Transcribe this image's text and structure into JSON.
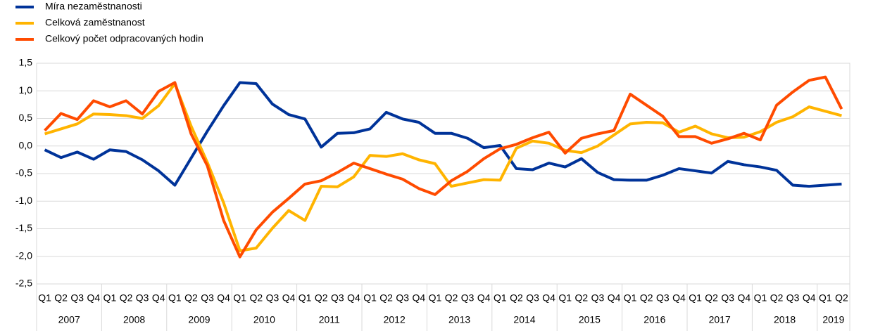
{
  "chart_data": {
    "type": "line",
    "categories": [
      "Q1",
      "Q2",
      "Q3",
      "Q4",
      "Q1",
      "Q2",
      "Q3",
      "Q4",
      "Q1",
      "Q2",
      "Q3",
      "Q4",
      "Q1",
      "Q2",
      "Q3",
      "Q4",
      "Q1",
      "Q2",
      "Q3",
      "Q4",
      "Q1",
      "Q2",
      "Q3",
      "Q4",
      "Q1",
      "Q2",
      "Q3",
      "Q4",
      "Q1",
      "Q2",
      "Q3",
      "Q4",
      "Q1",
      "Q2",
      "Q3",
      "Q4",
      "Q1",
      "Q2",
      "Q3",
      "Q4",
      "Q1",
      "Q2",
      "Q3",
      "Q4",
      "Q1",
      "Q2",
      "Q3",
      "Q4",
      "Q1",
      "Q2"
    ],
    "years": [
      "2007",
      "2008",
      "2009",
      "2010",
      "2011",
      "2012",
      "2013",
      "2014",
      "2015",
      "2016",
      "2017",
      "2018",
      "2019"
    ],
    "series": [
      {
        "name": "Míra nezaměstnanosti",
        "color": "#003399",
        "values": [
          -0.07,
          -0.21,
          -0.11,
          -0.24,
          -0.07,
          -0.1,
          -0.25,
          -0.45,
          -0.71,
          -0.22,
          0.27,
          0.73,
          1.15,
          1.13,
          0.76,
          0.57,
          0.49,
          -0.02,
          0.23,
          0.24,
          0.31,
          0.61,
          0.49,
          0.43,
          0.23,
          0.23,
          0.14,
          -0.03,
          0.01,
          -0.41,
          -0.43,
          -0.31,
          -0.38,
          -0.23,
          -0.48,
          -0.61,
          -0.62,
          -0.62,
          -0.53,
          -0.41,
          -0.45,
          -0.49,
          -0.28,
          -0.34,
          -0.38,
          -0.44,
          -0.71,
          -0.73,
          -0.71,
          -0.69
        ]
      },
      {
        "name": "Celková zaměstnanost",
        "color": "#ffb400",
        "values": [
          0.22,
          0.31,
          0.4,
          0.58,
          0.57,
          0.55,
          0.5,
          0.73,
          1.13,
          0.36,
          -0.3,
          -1.03,
          -1.9,
          -1.85,
          -1.49,
          -1.17,
          -1.35,
          -0.73,
          -0.74,
          -0.56,
          -0.17,
          -0.19,
          -0.14,
          -0.25,
          -0.32,
          -0.73,
          -0.67,
          -0.61,
          -0.62,
          -0.04,
          0.09,
          0.05,
          -0.08,
          -0.12,
          0.0,
          0.2,
          0.4,
          0.43,
          0.42,
          0.25,
          0.36,
          0.22,
          0.15,
          0.16,
          0.26,
          0.43,
          0.53,
          0.71,
          0.63,
          0.55
        ]
      },
      {
        "name": "Celkový počet odpracovaných hodin",
        "color": "#ff4b00",
        "values": [
          0.28,
          0.59,
          0.48,
          0.82,
          0.71,
          0.82,
          0.58,
          0.99,
          1.15,
          0.22,
          -0.36,
          -1.35,
          -2.01,
          -1.52,
          -1.2,
          -0.95,
          -0.69,
          -0.63,
          -0.48,
          -0.31,
          -0.41,
          -0.51,
          -0.6,
          -0.77,
          -0.88,
          -0.63,
          -0.46,
          -0.23,
          -0.05,
          0.03,
          0.15,
          0.25,
          -0.13,
          0.14,
          0.22,
          0.28,
          0.94,
          0.74,
          0.54,
          0.17,
          0.17,
          0.05,
          0.13,
          0.23,
          0.11,
          0.74,
          0.98,
          1.19,
          1.25,
          0.67
        ]
      }
    ],
    "ylim": [
      -2.5,
      1.5
    ],
    "yticks": [
      {
        "value": 1.5,
        "label": "1,5"
      },
      {
        "value": 1.0,
        "label": "1,0"
      },
      {
        "value": 0.5,
        "label": "0,5"
      },
      {
        "value": 0.0,
        "label": "0,0"
      },
      {
        "value": -0.5,
        "label": "-0,5"
      },
      {
        "value": -1.0,
        "label": "-1,0"
      },
      {
        "value": -1.5,
        "label": "-1,5"
      },
      {
        "value": -2.0,
        "label": "-2,0"
      },
      {
        "value": -2.5,
        "label": "-2,5"
      }
    ],
    "grid": true,
    "legend": "top-left"
  }
}
